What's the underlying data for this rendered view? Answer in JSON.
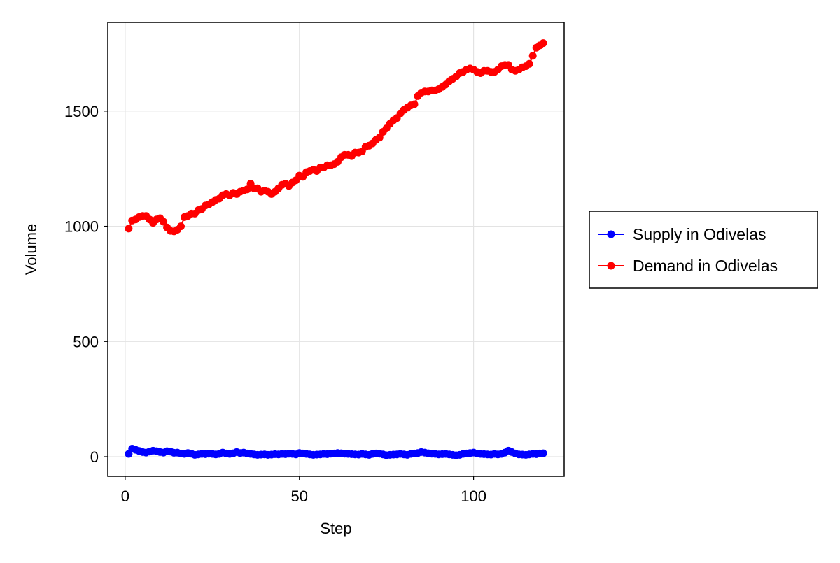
{
  "chart_data": {
    "type": "line",
    "title": "",
    "xlabel": "Step",
    "ylabel": "Volume",
    "xlim": [
      -5,
      126
    ],
    "ylim": [
      -85,
      1885
    ],
    "xticks": [
      0,
      50,
      100
    ],
    "yticks": [
      0,
      500,
      1000,
      1500
    ],
    "grid": true,
    "legend_position": "right",
    "markers": true,
    "series": [
      {
        "name": "Supply in Odivelas",
        "color": "#0000ff",
        "x": [
          1,
          2,
          3,
          4,
          5,
          6,
          7,
          8,
          9,
          10,
          11,
          12,
          13,
          14,
          15,
          16,
          17,
          18,
          19,
          20,
          21,
          22,
          23,
          24,
          25,
          26,
          27,
          28,
          29,
          30,
          31,
          32,
          33,
          34,
          35,
          36,
          37,
          38,
          39,
          40,
          41,
          42,
          43,
          44,
          45,
          46,
          47,
          48,
          49,
          50,
          51,
          52,
          53,
          54,
          55,
          56,
          57,
          58,
          59,
          60,
          61,
          62,
          63,
          64,
          65,
          66,
          67,
          68,
          69,
          70,
          71,
          72,
          73,
          74,
          75,
          76,
          77,
          78,
          79,
          80,
          81,
          82,
          83,
          84,
          85,
          86,
          87,
          88,
          89,
          90,
          91,
          92,
          93,
          94,
          95,
          96,
          97,
          98,
          99,
          100,
          101,
          102,
          103,
          104,
          105,
          106,
          107,
          108,
          109,
          110,
          111,
          112,
          113,
          114,
          115,
          116,
          117,
          118,
          119,
          120
        ],
        "values": [
          12,
          35,
          30,
          25,
          20,
          18,
          22,
          26,
          24,
          20,
          18,
          24,
          22,
          17,
          18,
          14,
          12,
          16,
          13,
          8,
          10,
          12,
          11,
          13,
          12,
          10,
          12,
          18,
          14,
          12,
          15,
          20,
          16,
          18,
          14,
          12,
          10,
          8,
          9,
          10,
          8,
          9,
          11,
          10,
          12,
          11,
          13,
          12,
          10,
          16,
          14,
          12,
          10,
          8,
          9,
          10,
          12,
          11,
          13,
          14,
          16,
          15,
          13,
          12,
          11,
          10,
          9,
          12,
          10,
          8,
          12,
          14,
          13,
          10,
          6,
          8,
          9,
          10,
          12,
          10,
          8,
          12,
          14,
          16,
          20,
          18,
          15,
          13,
          12,
          10,
          11,
          12,
          10,
          8,
          6,
          8,
          12,
          14,
          16,
          18,
          14,
          12,
          11,
          10,
          9,
          12,
          10,
          12,
          18,
          26,
          20,
          14,
          10,
          9,
          8,
          10,
          12,
          11,
          14,
          15
        ]
      },
      {
        "name": "Demand in Odivelas",
        "color": "#ff0000",
        "x": [
          1,
          2,
          3,
          4,
          5,
          6,
          7,
          8,
          9,
          10,
          11,
          12,
          13,
          14,
          15,
          16,
          17,
          18,
          19,
          20,
          21,
          22,
          23,
          24,
          25,
          26,
          27,
          28,
          29,
          30,
          31,
          32,
          33,
          34,
          35,
          36,
          37,
          38,
          39,
          40,
          41,
          42,
          43,
          44,
          45,
          46,
          47,
          48,
          49,
          50,
          51,
          52,
          53,
          54,
          55,
          56,
          57,
          58,
          59,
          60,
          61,
          62,
          63,
          64,
          65,
          66,
          67,
          68,
          69,
          70,
          71,
          72,
          73,
          74,
          75,
          76,
          77,
          78,
          79,
          80,
          81,
          82,
          83,
          84,
          85,
          86,
          87,
          88,
          89,
          90,
          91,
          92,
          93,
          94,
          95,
          96,
          97,
          98,
          99,
          100,
          101,
          102,
          103,
          104,
          105,
          106,
          107,
          108,
          109,
          110,
          111,
          112,
          113,
          114,
          115,
          116,
          117,
          118,
          119,
          120
        ],
        "values": [
          990,
          1025,
          1030,
          1040,
          1045,
          1045,
          1030,
          1015,
          1030,
          1035,
          1020,
          995,
          980,
          978,
          985,
          1000,
          1040,
          1045,
          1055,
          1055,
          1070,
          1075,
          1090,
          1095,
          1105,
          1115,
          1120,
          1135,
          1140,
          1135,
          1145,
          1140,
          1150,
          1155,
          1160,
          1185,
          1165,
          1165,
          1150,
          1155,
          1150,
          1140,
          1150,
          1165,
          1180,
          1185,
          1175,
          1190,
          1200,
          1220,
          1215,
          1235,
          1240,
          1245,
          1240,
          1255,
          1255,
          1265,
          1265,
          1270,
          1280,
          1300,
          1310,
          1310,
          1305,
          1320,
          1320,
          1325,
          1345,
          1350,
          1360,
          1375,
          1385,
          1410,
          1425,
          1445,
          1460,
          1470,
          1490,
          1505,
          1515,
          1525,
          1530,
          1565,
          1580,
          1585,
          1585,
          1590,
          1590,
          1595,
          1605,
          1615,
          1630,
          1640,
          1650,
          1665,
          1670,
          1680,
          1685,
          1680,
          1670,
          1665,
          1675,
          1675,
          1670,
          1670,
          1680,
          1695,
          1700,
          1700,
          1680,
          1675,
          1680,
          1690,
          1695,
          1705,
          1740,
          1775,
          1785,
          1795
        ]
      }
    ]
  }
}
